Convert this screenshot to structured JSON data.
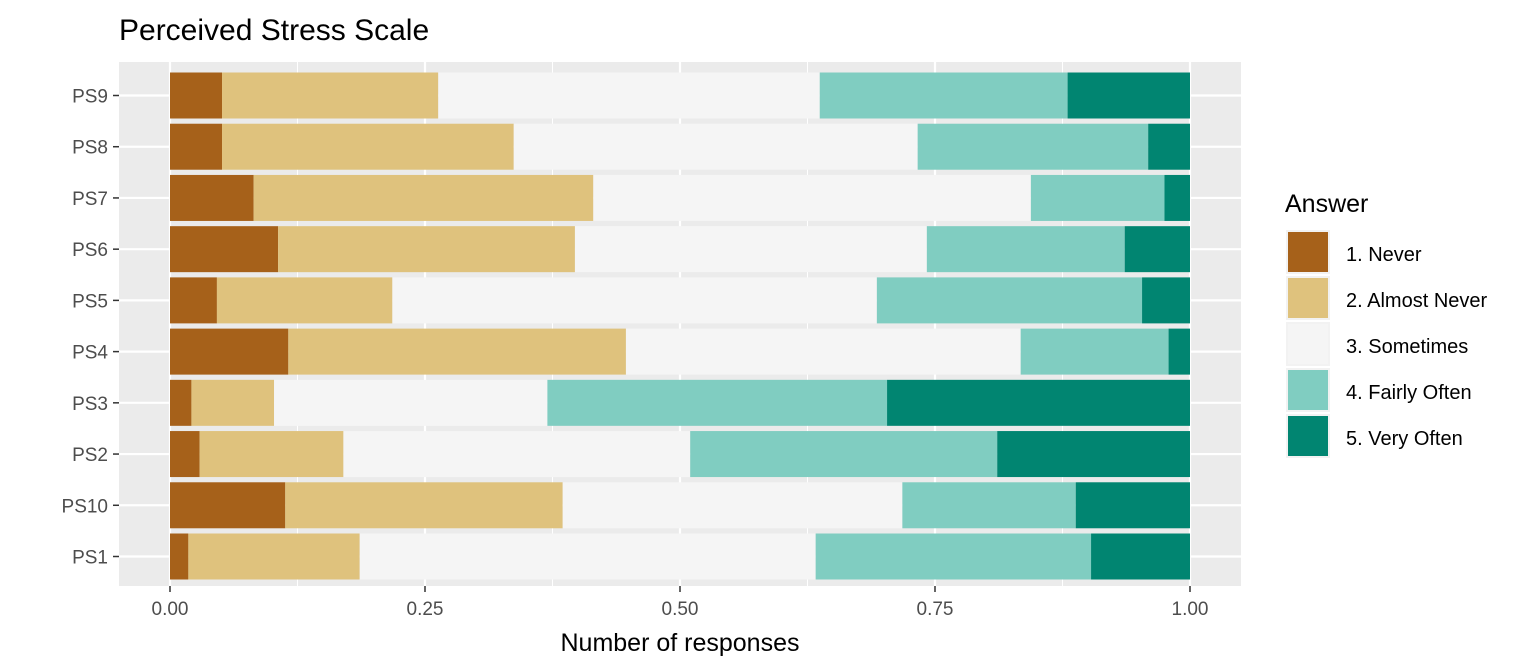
{
  "chart_data": {
    "type": "bar",
    "orientation": "horizontal",
    "stacked": true,
    "title": "Perceived Stress Scale",
    "xlabel": "Number of responses",
    "ylabel": "",
    "xlim": [
      0,
      1
    ],
    "x_ticks": [
      0,
      0.25,
      0.5,
      0.75,
      1
    ],
    "x_tick_labels": [
      "0.00",
      "0.25",
      "0.50",
      "0.75",
      "1.00"
    ],
    "categories": [
      "PS1",
      "PS10",
      "PS2",
      "PS3",
      "PS4",
      "PS5",
      "PS6",
      "PS7",
      "PS8",
      "PS9"
    ],
    "grid": true,
    "legend": {
      "title": "Answer",
      "position": "right"
    },
    "series": [
      {
        "name": "1. Never",
        "color": "#a6611a",
        "values": [
          0.018,
          0.113,
          0.029,
          0.021,
          0.116,
          0.046,
          0.106,
          0.082,
          0.051,
          0.051
        ]
      },
      {
        "name": "2. Almost Never",
        "color": "#dfc27d",
        "values": [
          0.168,
          0.272,
          0.141,
          0.081,
          0.331,
          0.172,
          0.291,
          0.333,
          0.286,
          0.212
        ]
      },
      {
        "name": "3. Sometimes",
        "color": "#f5f5f5",
        "values": [
          0.447,
          0.333,
          0.34,
          0.268,
          0.387,
          0.475,
          0.345,
          0.429,
          0.396,
          0.374
        ]
      },
      {
        "name": "4. Fairly Often",
        "color": "#80cdc1",
        "values": [
          0.27,
          0.17,
          0.301,
          0.333,
          0.145,
          0.26,
          0.194,
          0.131,
          0.226,
          0.243
        ]
      },
      {
        "name": "5. Very Often",
        "color": "#018571",
        "values": [
          0.097,
          0.112,
          0.189,
          0.297,
          0.021,
          0.047,
          0.064,
          0.025,
          0.041,
          0.12
        ]
      }
    ]
  },
  "colors": {
    "panel_background": "#ebebeb",
    "gridline": "#ffffff",
    "tick_text": "#4d4d4d"
  }
}
